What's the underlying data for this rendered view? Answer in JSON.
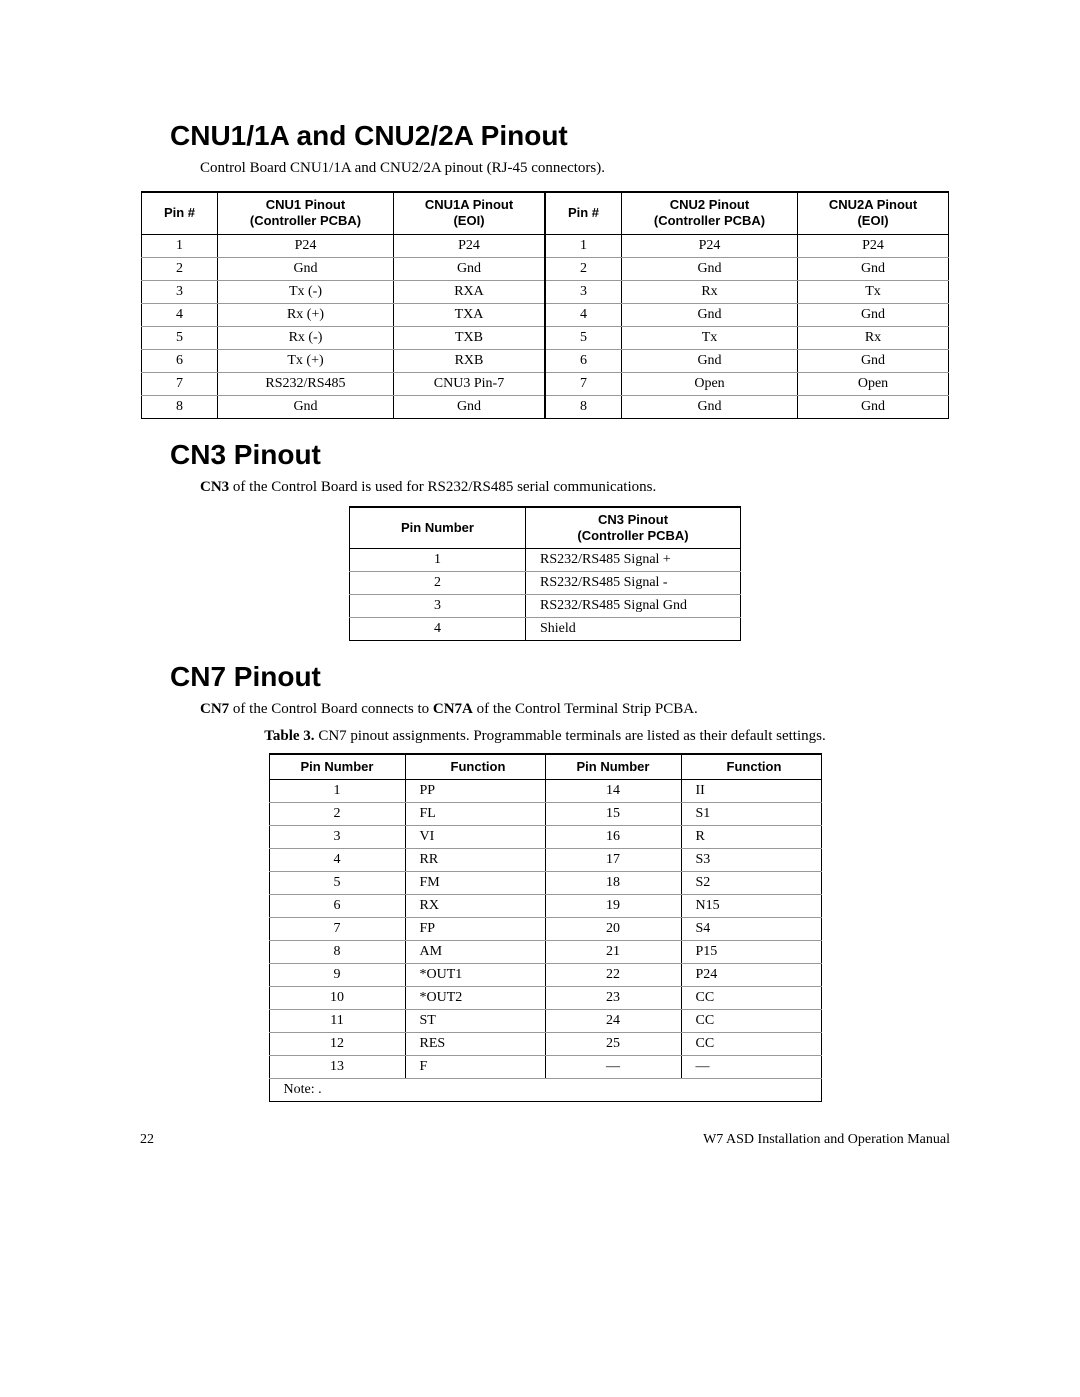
{
  "section1": {
    "title": "CNU1/1A and CNU2/2A Pinout",
    "intro": "Control Board CNU1/1A and CNU2/2A pinout (RJ-45 connectors).",
    "headers": [
      "Pin #",
      "CNU1 Pinout\n(Controller PCBA)",
      "CNU1A Pinout\n(EOI)",
      "Pin #",
      "CNU2 Pinout\n(Controller PCBA)",
      "CNU2A Pinout\n(EOI)"
    ],
    "rows": [
      [
        "1",
        "P24",
        "P24",
        "1",
        "P24",
        "P24"
      ],
      [
        "2",
        "Gnd",
        "Gnd",
        "2",
        "Gnd",
        "Gnd"
      ],
      [
        "3",
        "Tx (-)",
        "RXA",
        "3",
        "Rx",
        "Tx"
      ],
      [
        "4",
        "Rx (+)",
        "TXA",
        "4",
        "Gnd",
        "Gnd"
      ],
      [
        "5",
        "Rx (-)",
        "TXB",
        "5",
        "Tx",
        "Rx"
      ],
      [
        "6",
        "Tx (+)",
        "RXB",
        "6",
        "Gnd",
        "Gnd"
      ],
      [
        "7",
        "RS232/RS485",
        "CNU3 Pin-7",
        "7",
        "Open",
        "Open"
      ],
      [
        "8",
        "Gnd",
        "Gnd",
        "8",
        "Gnd",
        "Gnd"
      ]
    ]
  },
  "section2": {
    "title": "CN3 Pinout",
    "intro_b": "CN3",
    "intro_rest": " of the Control Board is used for RS232/RS485 serial communications.",
    "headers": [
      "Pin Number",
      "CN3 Pinout\n(Controller PCBA)"
    ],
    "rows": [
      [
        "1",
        "RS232/RS485 Signal +"
      ],
      [
        "2",
        "RS232/RS485 Signal -"
      ],
      [
        "3",
        "RS232/RS485 Signal Gnd"
      ],
      [
        "4",
        "Shield"
      ]
    ]
  },
  "section3": {
    "title": "CN7 Pinout",
    "intro_b1": "CN7",
    "intro_mid": " of the Control Board connects to ",
    "intro_b2": "CN7A",
    "intro_end": " of the Control Terminal Strip PCBA.",
    "caption_b": "Table 3.",
    "caption_rest": " CN7 pinout assignments. Programmable terminals are listed as their default settings.",
    "headers": [
      "Pin Number",
      "Function",
      "Pin Number",
      "Function"
    ],
    "rows": [
      [
        "1",
        "PP",
        "14",
        "II"
      ],
      [
        "2",
        "FL",
        "15",
        "S1"
      ],
      [
        "3",
        "VI",
        "16",
        "R"
      ],
      [
        "4",
        "RR",
        "17",
        "S3"
      ],
      [
        "5",
        "FM",
        "18",
        "S2"
      ],
      [
        "6",
        "RX",
        "19",
        "N15"
      ],
      [
        "7",
        "FP",
        "20",
        "S4"
      ],
      [
        "8",
        "AM",
        "21",
        "P15"
      ],
      [
        "9",
        "*OUT1",
        "22",
        "P24"
      ],
      [
        "10",
        "*OUT2",
        "23",
        "CC"
      ],
      [
        "11",
        "ST",
        "24",
        "CC"
      ],
      [
        "12",
        "RES",
        "25",
        "CC"
      ],
      [
        "13",
        "F",
        "—",
        "—"
      ]
    ],
    "note": "Note:    ."
  },
  "footer": {
    "page": "22",
    "title": "W7 ASD Installation and Operation Manual"
  }
}
